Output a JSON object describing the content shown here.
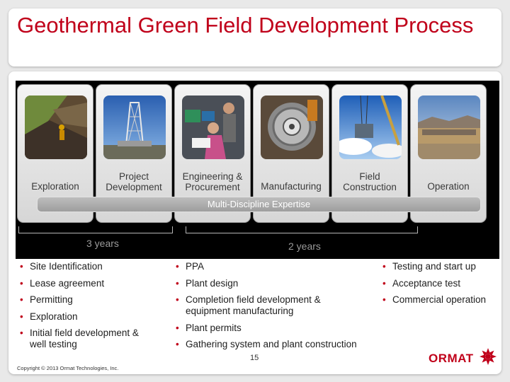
{
  "slide": {
    "title": "Geothermal Green Field Development Process",
    "page_number": "15",
    "copyright": "Copyright © 2013 Ormat Technologies, Inc.",
    "logo_text": "ORMAT"
  },
  "stages": [
    {
      "label": "Exploration",
      "photo": "hillside-exploration-photo"
    },
    {
      "label": "Project\nDevelopment",
      "photo": "drilling-rig-photo"
    },
    {
      "label": "Engineering &\nProcurement",
      "photo": "engineers-at-computers-photo"
    },
    {
      "label": "Manufacturing",
      "photo": "turbine-manufacturing-photo"
    },
    {
      "label": "Field\nConstruction",
      "photo": "crane-construction-photo"
    },
    {
      "label": "Operation",
      "photo": "power-plant-photo"
    }
  ],
  "expertise_bar": "Multi-Discipline Expertise",
  "durations": [
    {
      "label": "3 years"
    },
    {
      "label": "2 years"
    }
  ],
  "lists": {
    "col1": [
      "Site Identification",
      "Lease agreement",
      "Permitting",
      "Exploration",
      "Initial field development &\nwell  testing"
    ],
    "col2": [
      "PPA",
      "Plant design",
      "Completion field development &\nequipment manufacturing",
      "Plant permits",
      "Gathering system and plant construction"
    ],
    "col3": [
      "Testing and start up",
      "Acceptance test",
      "Commercial operation"
    ]
  },
  "colors": {
    "accent": "#c0001a"
  }
}
